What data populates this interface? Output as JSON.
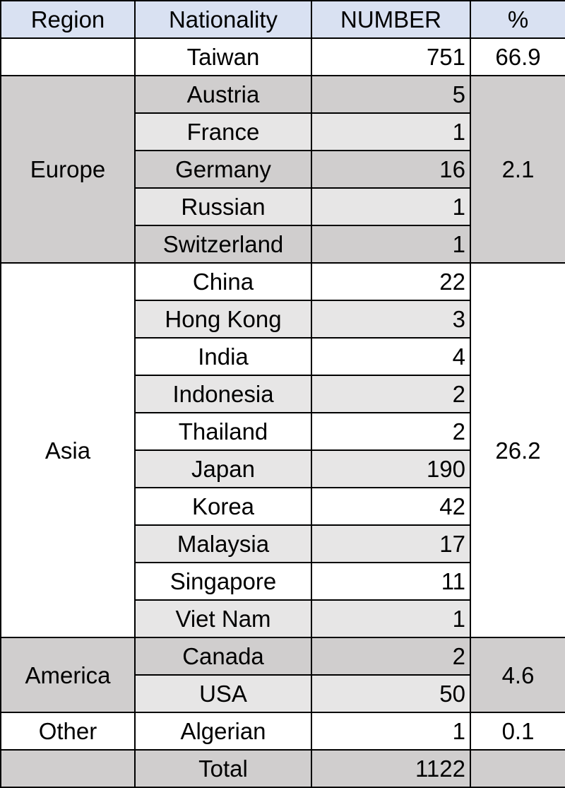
{
  "headers": [
    "Region",
    "Nationality",
    "NUMBER",
    "%"
  ],
  "groups": [
    {
      "region": "",
      "percent": "66.9",
      "shade": "w",
      "rows": [
        {
          "nationality": "Taiwan",
          "number": "751",
          "shade": "w"
        }
      ]
    },
    {
      "region": "Europe",
      "percent": "2.1",
      "shade": "d",
      "rows": [
        {
          "nationality": "Austria",
          "number": "5",
          "shade": "d"
        },
        {
          "nationality": "France",
          "number": "1",
          "shade": "l"
        },
        {
          "nationality": "Germany",
          "number": "16",
          "shade": "d"
        },
        {
          "nationality": "Russian",
          "number": "1",
          "shade": "l"
        },
        {
          "nationality": "Switzerland",
          "number": "1",
          "shade": "d"
        }
      ]
    },
    {
      "region": "Asia",
      "percent": "26.2",
      "shade": "w",
      "rows": [
        {
          "nationality": "China",
          "number": "22",
          "shade": "w"
        },
        {
          "nationality": "Hong Kong",
          "number": "3",
          "shade": "l"
        },
        {
          "nationality": "India",
          "number": "4",
          "shade": "w"
        },
        {
          "nationality": "Indonesia",
          "number": "2",
          "shade": "l"
        },
        {
          "nationality": "Thailand",
          "number": "2",
          "shade": "w"
        },
        {
          "nationality": "Japan",
          "number": "190",
          "shade": "l"
        },
        {
          "nationality": "Korea",
          "number": "42",
          "shade": "w"
        },
        {
          "nationality": "Malaysia",
          "number": "17",
          "shade": "l"
        },
        {
          "nationality": "Singapore",
          "number": "11",
          "shade": "w"
        },
        {
          "nationality": "Viet Nam",
          "number": "1",
          "shade": "l"
        }
      ]
    },
    {
      "region": "America",
      "percent": "4.6",
      "shade": "d",
      "rows": [
        {
          "nationality": "Canada",
          "number": "2",
          "shade": "d"
        },
        {
          "nationality": "USA",
          "number": "50",
          "shade": "l"
        }
      ]
    },
    {
      "region": "Other",
      "percent": "0.1",
      "shade": "w",
      "rows": [
        {
          "nationality": "Algerian",
          "number": "1",
          "shade": "w"
        }
      ]
    }
  ],
  "total": {
    "label": "Total",
    "number": "1122",
    "shade": "d"
  },
  "colors": {
    "header": "#d9e1f2",
    "dark": "#d0cece",
    "light": "#e7e6e6",
    "white": "#ffffff"
  }
}
